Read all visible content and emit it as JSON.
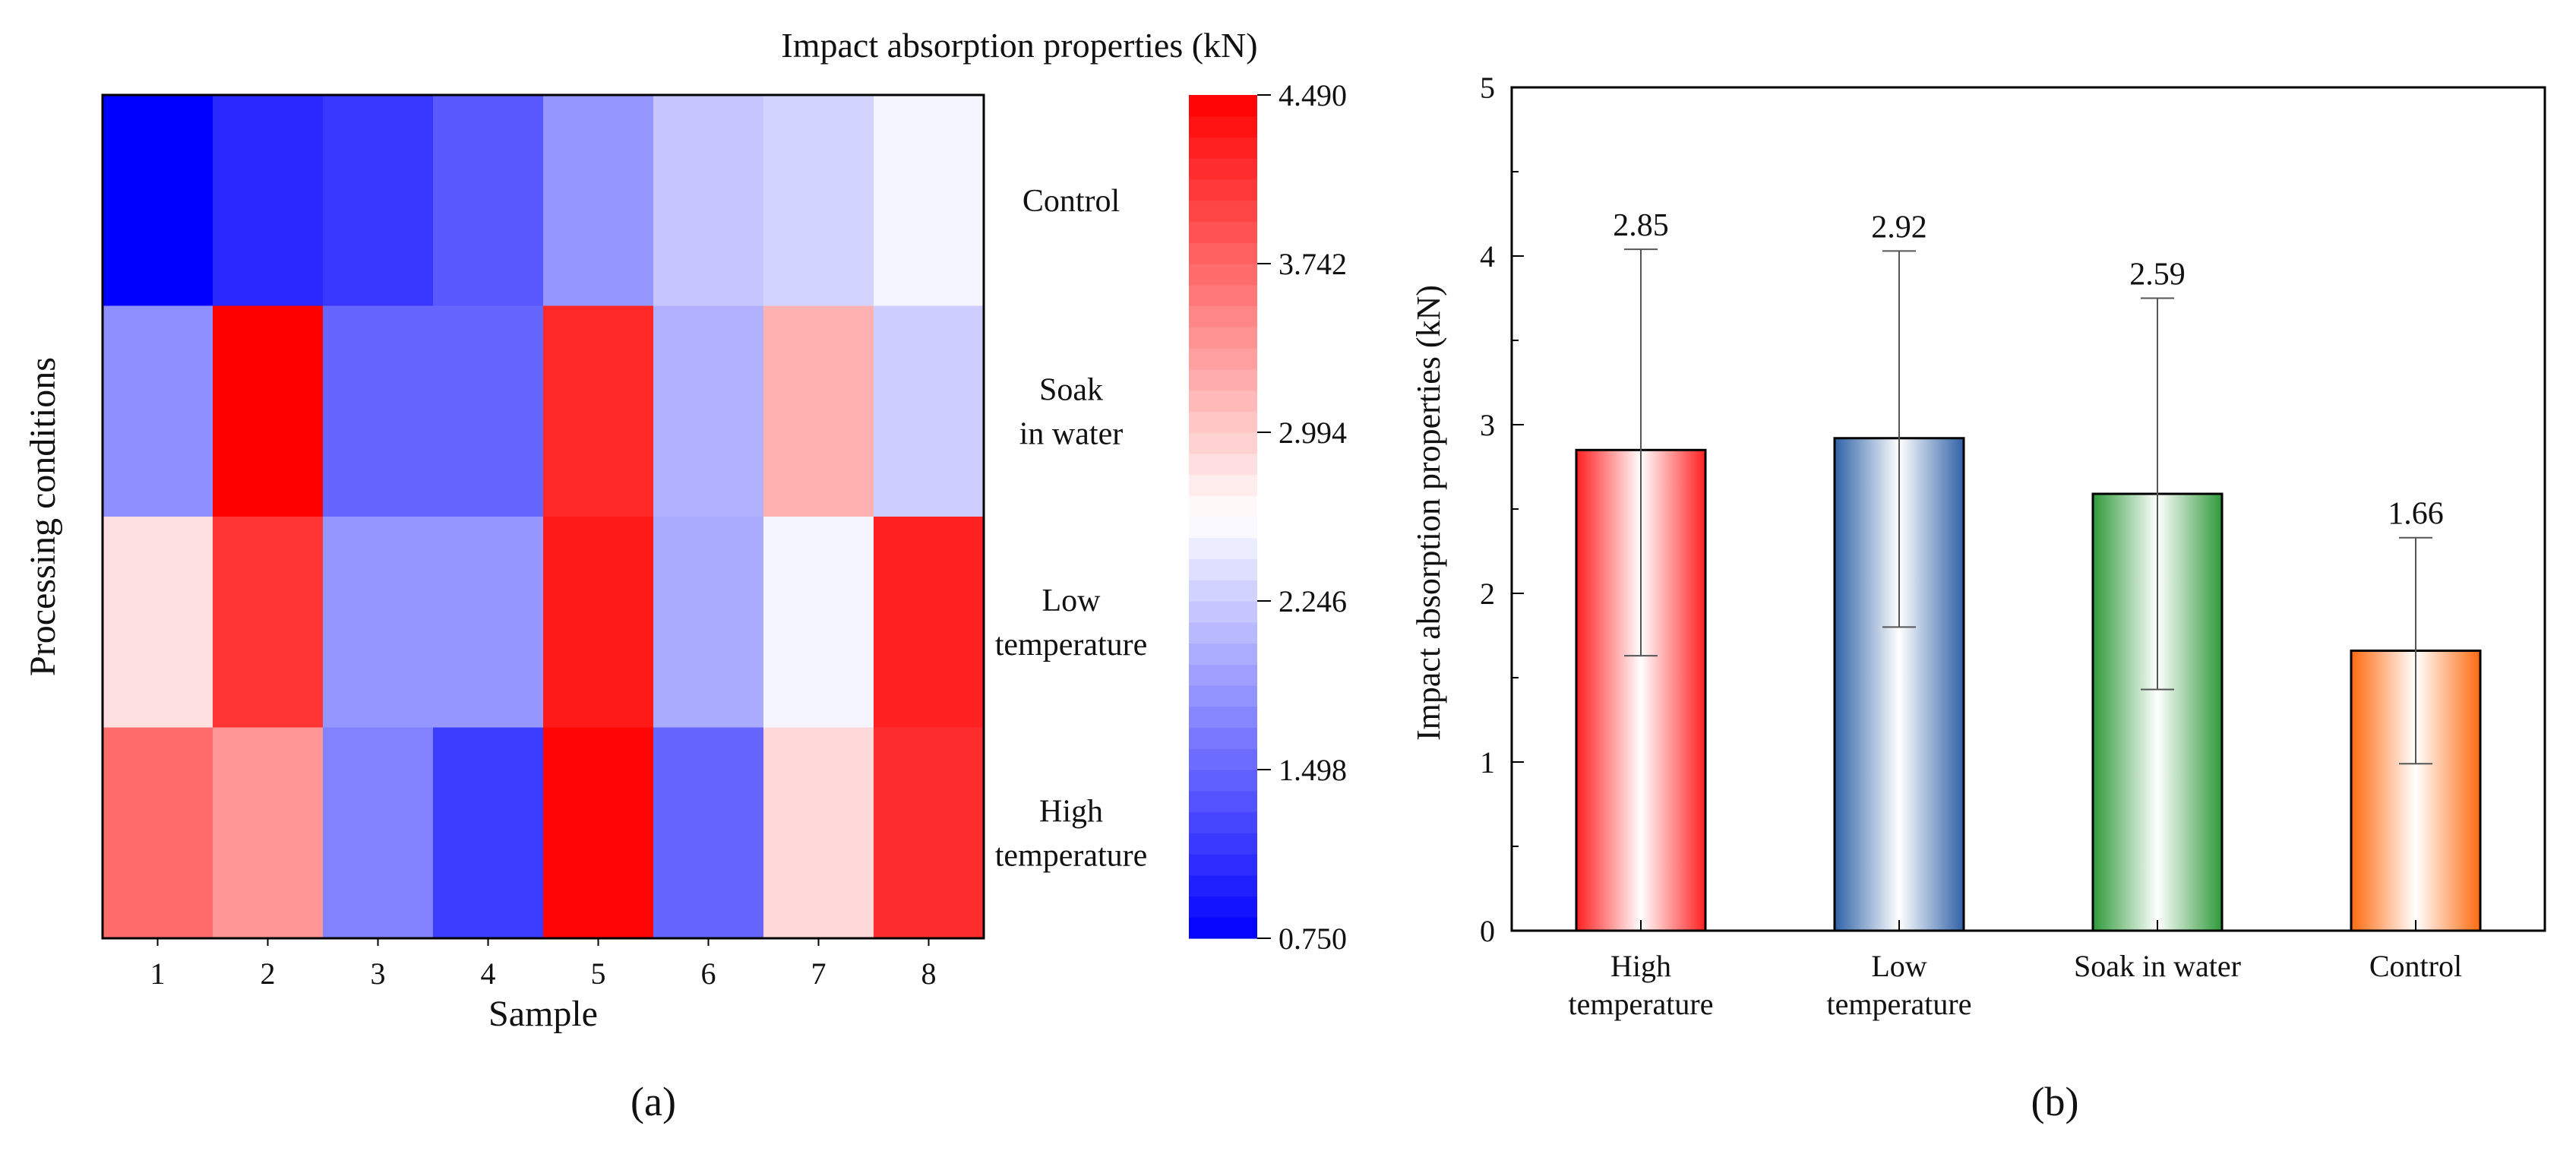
{
  "chart_data": [
    {
      "type": "heatmap",
      "panel_label": "(a)",
      "colorbar_title": "Impact absorption properties (kN)",
      "xlabel": "Sample",
      "ylabel": "Processing conditions",
      "x_categories": [
        "1",
        "2",
        "3",
        "4",
        "5",
        "6",
        "7",
        "8"
      ],
      "y_categories": [
        "Control",
        "Soak\nin water",
        "Low\ntemperature",
        "High\ntemperature"
      ],
      "values": [
        [
          0.75,
          1.05,
          1.15,
          1.4,
          1.85,
          2.2,
          2.3,
          2.55
        ],
        [
          1.8,
          4.49,
          1.5,
          1.5,
          4.2,
          2.05,
          3.2,
          2.25
        ],
        [
          2.85,
          4.1,
          1.85,
          1.85,
          4.3,
          2.0,
          2.55,
          4.25
        ],
        [
          3.7,
          3.4,
          1.7,
          1.2,
          4.45,
          1.5,
          2.9,
          4.15
        ]
      ],
      "colorbar": {
        "min": 0.75,
        "max": 4.49,
        "ticks": [
          "0.750",
          "1.498",
          "2.246",
          "2.994",
          "3.742",
          "4.490"
        ],
        "colors": {
          "low": "#0000ff",
          "mid": "#ffffff",
          "high": "#ff0000"
        }
      }
    },
    {
      "type": "bar",
      "panel_label": "(b)",
      "ylabel": "Impact absorption properties (kN)",
      "xlabel": "",
      "categories": [
        "High\ntemperature",
        "Low\ntemperature",
        "Soak in water",
        "Control"
      ],
      "values": [
        2.85,
        2.92,
        2.59,
        1.66
      ],
      "value_labels": [
        "2.85",
        "2.92",
        "2.59",
        "1.66"
      ],
      "error_low": [
        1.63,
        1.8,
        1.43,
        0.99
      ],
      "error_high": [
        4.04,
        4.03,
        3.75,
        2.33
      ],
      "ylim": [
        0,
        5
      ],
      "yticks": [
        "0",
        "1",
        "2",
        "3",
        "4",
        "5"
      ],
      "bar_colors": [
        "#ff2020",
        "#2f62a8",
        "#2e9a3a",
        "#ff6a10"
      ]
    }
  ]
}
